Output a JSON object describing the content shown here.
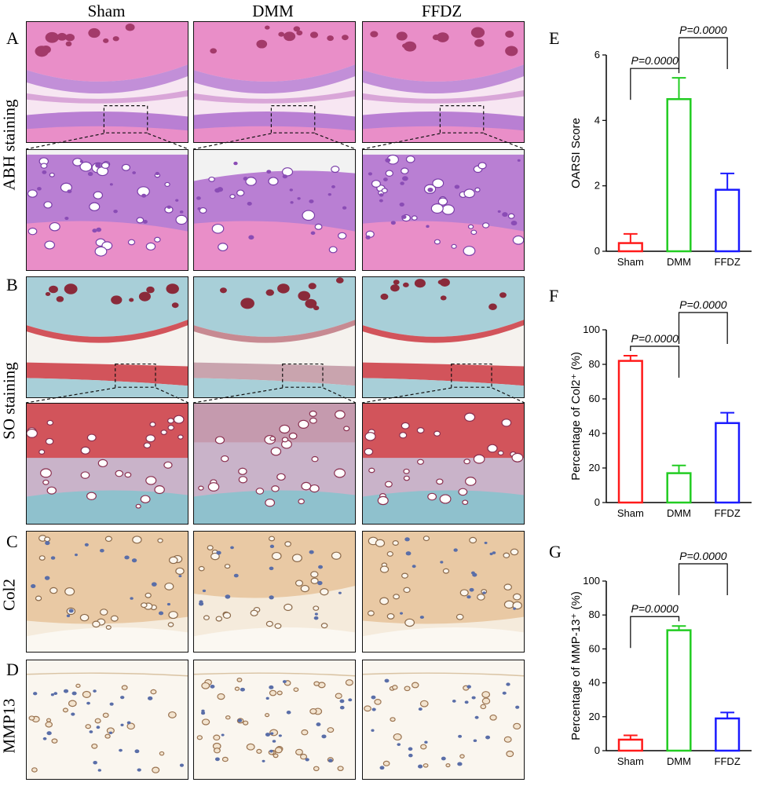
{
  "columns": [
    "Sham",
    "DMM",
    "FFDZ"
  ],
  "panel_letters": {
    "A": "A",
    "B": "B",
    "C": "C",
    "D": "D",
    "E": "E",
    "F": "F",
    "G": "G"
  },
  "row_labels": {
    "abh": "ABH staining",
    "so": "SO staining",
    "col2": "Col2",
    "mmp13": "MMP13"
  },
  "colors": {
    "abh_bone": "#e98ec8",
    "abh_cart": "#b97fd3",
    "abh_cell": "#8a4cb5",
    "so_red": "#d2545b",
    "so_blue": "#8fc1cd",
    "so_bone": "#a8cfd8",
    "ihc_brown": "#e9c9a4",
    "ihc_light": "#f5ebdc",
    "ihc_nuc": "#5a6ea8",
    "sham": "#ff1a1a",
    "dmm": "#22cc22",
    "ffdz": "#1a1aff"
  },
  "chart_data": [
    {
      "id": "E",
      "type": "bar",
      "categories": [
        "Sham",
        "DMM",
        "FFDZ"
      ],
      "values": [
        0.25,
        4.65,
        1.88
      ],
      "errors": [
        0.28,
        0.65,
        0.5
      ],
      "ylabel": "OARSI Score",
      "ylim": [
        0,
        6
      ],
      "yticks": [
        0,
        2,
        4,
        6
      ],
      "comparisons": [
        {
          "from": 0,
          "to": 1,
          "label": "P=0.0000"
        },
        {
          "from": 1,
          "to": 2,
          "label": "P=0.0000"
        }
      ]
    },
    {
      "id": "F",
      "type": "bar",
      "categories": [
        "Sham",
        "DMM",
        "FFDZ"
      ],
      "values": [
        82,
        17,
        46
      ],
      "errors": [
        3,
        4.5,
        6
      ],
      "ylabel": "Percentage of Col2⁺ (%)",
      "ylim": [
        0,
        100
      ],
      "yticks": [
        0,
        20,
        40,
        60,
        80,
        100
      ],
      "comparisons": [
        {
          "from": 0,
          "to": 1,
          "label": "P=0.0000"
        },
        {
          "from": 1,
          "to": 2,
          "label": "P=0.0000"
        }
      ]
    },
    {
      "id": "G",
      "type": "bar",
      "categories": [
        "Sham",
        "DMM",
        "FFDZ"
      ],
      "values": [
        6.5,
        71,
        19
      ],
      "errors": [
        2.5,
        2.5,
        3.5
      ],
      "ylabel": "Percentage of MMP-13⁺ (%)",
      "ylim": [
        0,
        100
      ],
      "yticks": [
        0,
        20,
        40,
        60,
        80,
        100
      ],
      "comparisons": [
        {
          "from": 0,
          "to": 1,
          "label": "P=0.0000"
        },
        {
          "from": 1,
          "to": 2,
          "label": "P=0.0000"
        }
      ]
    }
  ]
}
